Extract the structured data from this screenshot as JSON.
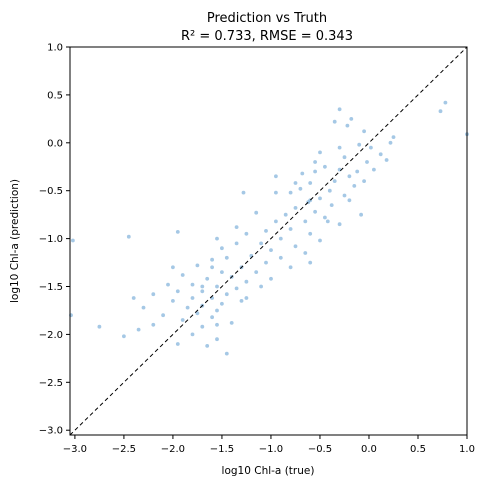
{
  "chart_data": {
    "type": "scatter",
    "title": "Prediction vs Truth",
    "subtitle": "R² = 0.733, RMSE = 0.343",
    "xlabel": "log10 Chl-a (true)",
    "ylabel": "log10 Chl-a (prediction)",
    "xlim": [
      -3.05,
      1.0
    ],
    "ylim": [
      -3.05,
      1.0
    ],
    "xticks": [
      "−3.0",
      "−2.5",
      "−2.0",
      "−1.5",
      "−1.0",
      "−0.5",
      "0.0",
      "0.5",
      "1.0"
    ],
    "yticks": [
      "−3.0",
      "−2.5",
      "−2.0",
      "−1.5",
      "−1.0",
      "−0.5",
      "0.0",
      "0.5",
      "1.0"
    ],
    "xtick_values": [
      -3.0,
      -2.5,
      -2.0,
      -1.5,
      -1.0,
      -0.5,
      0.0,
      0.5,
      1.0
    ],
    "ytick_values": [
      -3.0,
      -2.5,
      -2.0,
      -1.5,
      -1.0,
      -0.5,
      0.0,
      0.5,
      1.0
    ],
    "grid": false,
    "point_color": "#5b9bd0",
    "reference_line": {
      "type": "identity",
      "style": "dashed",
      "color": "#000000"
    },
    "points": [
      {
        "x": 0.78,
        "y": 0.42
      },
      {
        "x": 0.73,
        "y": 0.33
      },
      {
        "x": 1.0,
        "y": 0.09
      },
      {
        "x": -0.3,
        "y": 0.35
      },
      {
        "x": -0.18,
        "y": 0.25
      },
      {
        "x": -0.35,
        "y": 0.22
      },
      {
        "x": -0.22,
        "y": 0.18
      },
      {
        "x": -0.05,
        "y": 0.12
      },
      {
        "x": 0.25,
        "y": 0.06
      },
      {
        "x": 0.22,
        "y": 0.0
      },
      {
        "x": 0.02,
        "y": -0.05
      },
      {
        "x": 0.12,
        "y": -0.12
      },
      {
        "x": -0.1,
        "y": -0.02
      },
      {
        "x": -0.3,
        "y": -0.05
      },
      {
        "x": -0.5,
        "y": -0.1
      },
      {
        "x": -0.25,
        "y": -0.15
      },
      {
        "x": -0.02,
        "y": -0.2
      },
      {
        "x": 0.05,
        "y": -0.28
      },
      {
        "x": -0.12,
        "y": -0.3
      },
      {
        "x": -0.3,
        "y": -0.28
      },
      {
        "x": -0.45,
        "y": -0.25
      },
      {
        "x": -0.55,
        "y": -0.3
      },
      {
        "x": -0.2,
        "y": -0.35
      },
      {
        "x": -0.05,
        "y": -0.4
      },
      {
        "x": -0.35,
        "y": -0.4
      },
      {
        "x": -0.15,
        "y": -0.45
      },
      {
        "x": -0.6,
        "y": -0.42
      },
      {
        "x": -0.4,
        "y": -0.5
      },
      {
        "x": -0.7,
        "y": -0.48
      },
      {
        "x": -0.25,
        "y": -0.55
      },
      {
        "x": -0.5,
        "y": -0.58
      },
      {
        "x": -0.8,
        "y": -0.52
      },
      {
        "x": -0.95,
        "y": -0.52
      },
      {
        "x": -0.62,
        "y": -0.62
      },
      {
        "x": -0.38,
        "y": -0.65
      },
      {
        "x": -0.75,
        "y": -0.68
      },
      {
        "x": -0.55,
        "y": -0.72
      },
      {
        "x": -0.85,
        "y": -0.75
      },
      {
        "x": -0.45,
        "y": -0.78
      },
      {
        "x": -0.65,
        "y": -0.82
      },
      {
        "x": -0.95,
        "y": -0.82
      },
      {
        "x": -0.3,
        "y": -0.85
      },
      {
        "x": -0.8,
        "y": -0.9
      },
      {
        "x": -1.05,
        "y": -0.92
      },
      {
        "x": -0.6,
        "y": -0.95
      },
      {
        "x": -1.25,
        "y": -0.95
      },
      {
        "x": -0.9,
        "y": -1.0
      },
      {
        "x": -0.5,
        "y": -1.02
      },
      {
        "x": -1.1,
        "y": -1.05
      },
      {
        "x": -1.35,
        "y": -1.05
      },
      {
        "x": -0.75,
        "y": -1.08
      },
      {
        "x": -1.0,
        "y": -1.12
      },
      {
        "x": -1.5,
        "y": -1.1
      },
      {
        "x": -0.65,
        "y": -1.15
      },
      {
        "x": -1.2,
        "y": -1.18
      },
      {
        "x": -0.9,
        "y": -1.2
      },
      {
        "x": -1.45,
        "y": -1.2
      },
      {
        "x": -1.6,
        "y": -1.22
      },
      {
        "x": -1.05,
        "y": -1.25
      },
      {
        "x": -0.6,
        "y": -1.25
      },
      {
        "x": -1.3,
        "y": -1.3
      },
      {
        "x": -1.75,
        "y": -1.28
      },
      {
        "x": -0.8,
        "y": -1.3
      },
      {
        "x": -1.5,
        "y": -1.35
      },
      {
        "x": -1.15,
        "y": -1.35
      },
      {
        "x": -1.9,
        "y": -1.38
      },
      {
        "x": -1.4,
        "y": -1.4
      },
      {
        "x": -1.65,
        "y": -1.42
      },
      {
        "x": -1.0,
        "y": -1.42
      },
      {
        "x": -1.25,
        "y": -1.45
      },
      {
        "x": -1.8,
        "y": -1.48
      },
      {
        "x": -2.05,
        "y": -1.48
      },
      {
        "x": -1.55,
        "y": -1.5
      },
      {
        "x": -1.35,
        "y": -1.52
      },
      {
        "x": -1.7,
        "y": -1.55
      },
      {
        "x": -1.95,
        "y": -1.55
      },
      {
        "x": -1.45,
        "y": -1.58
      },
      {
        "x": -2.2,
        "y": -1.58
      },
      {
        "x": -1.6,
        "y": -1.62
      },
      {
        "x": -1.8,
        "y": -1.62
      },
      {
        "x": -1.3,
        "y": -1.65
      },
      {
        "x": -2.0,
        "y": -1.65
      },
      {
        "x": -1.5,
        "y": -1.68
      },
      {
        "x": -1.7,
        "y": -1.7
      },
      {
        "x": -1.85,
        "y": -1.72
      },
      {
        "x": -2.3,
        "y": -1.72
      },
      {
        "x": -1.55,
        "y": -1.75
      },
      {
        "x": -1.75,
        "y": -1.78
      },
      {
        "x": -2.1,
        "y": -1.8
      },
      {
        "x": -1.6,
        "y": -1.82
      },
      {
        "x": -1.9,
        "y": -1.85
      },
      {
        "x": -1.4,
        "y": -1.88
      },
      {
        "x": -2.2,
        "y": -1.9
      },
      {
        "x": -1.7,
        "y": -1.92
      },
      {
        "x": -2.35,
        "y": -1.95
      },
      {
        "x": -1.8,
        "y": -2.0
      },
      {
        "x": -1.55,
        "y": -2.05
      },
      {
        "x": -1.95,
        "y": -2.1
      },
      {
        "x": -1.65,
        "y": -2.12
      },
      {
        "x": -1.45,
        "y": -2.2
      },
      {
        "x": -2.5,
        "y": -2.02
      },
      {
        "x": -2.75,
        "y": -1.92
      },
      {
        "x": -2.4,
        "y": -1.62
      },
      {
        "x": -2.45,
        "y": -0.98
      },
      {
        "x": -3.02,
        "y": -1.02
      },
      {
        "x": -3.04,
        "y": -1.8
      },
      {
        "x": -1.55,
        "y": -1.0
      },
      {
        "x": -1.95,
        "y": -0.93
      },
      {
        "x": -1.35,
        "y": -0.88
      },
      {
        "x": -1.15,
        "y": -0.73
      },
      {
        "x": -1.28,
        "y": -0.52
      },
      {
        "x": -0.75,
        "y": -0.42
      },
      {
        "x": -0.55,
        "y": -0.2
      },
      {
        "x": -0.68,
        "y": -0.32
      },
      {
        "x": -0.95,
        "y": -0.35
      },
      {
        "x": -0.42,
        "y": -0.82
      },
      {
        "x": -0.2,
        "y": -0.6
      },
      {
        "x": -0.08,
        "y": -0.75
      },
      {
        "x": 0.18,
        "y": -0.18
      },
      {
        "x": -0.6,
        "y": -0.6
      },
      {
        "x": -1.6,
        "y": -1.3
      },
      {
        "x": -1.7,
        "y": -1.5
      },
      {
        "x": -1.55,
        "y": -1.9
      },
      {
        "x": -2.0,
        "y": -1.3
      },
      {
        "x": -1.25,
        "y": -1.62
      },
      {
        "x": -1.1,
        "y": -1.5
      }
    ]
  }
}
